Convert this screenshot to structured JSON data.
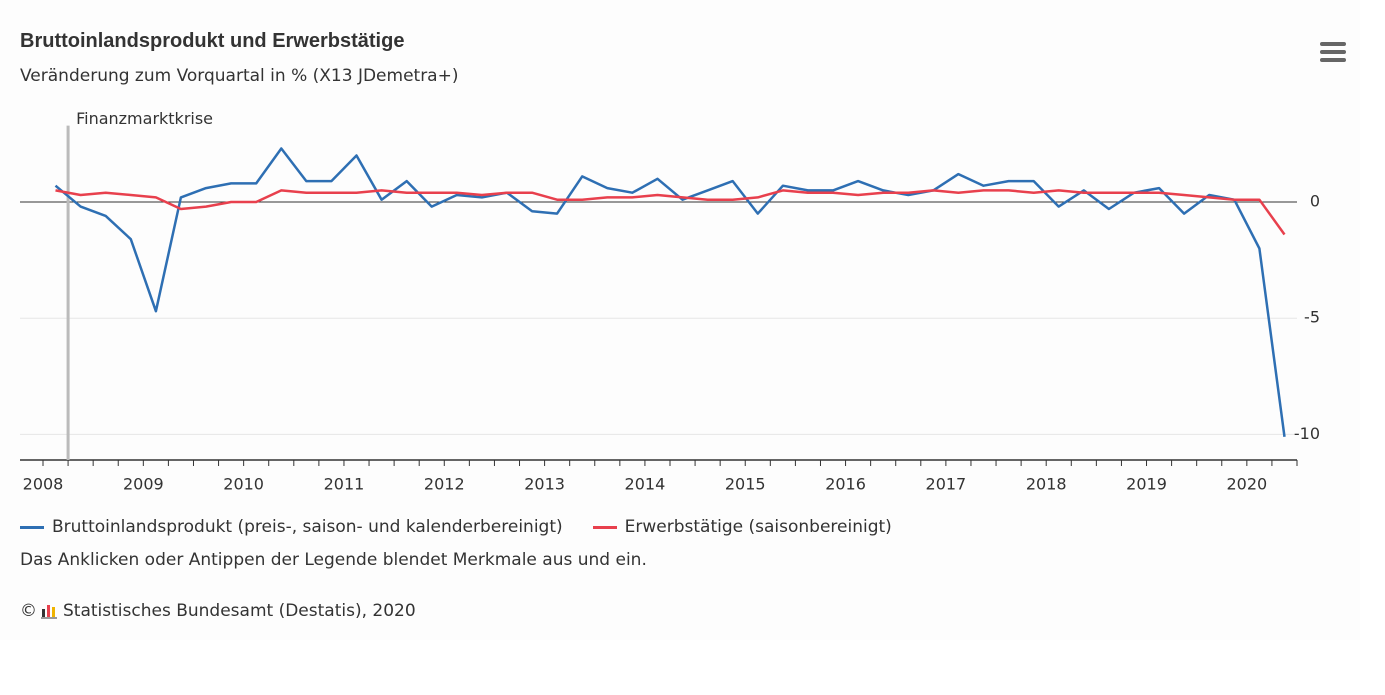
{
  "chart_data": {
    "type": "line",
    "title": "Bruttoinlandsprodukt und Erwerbstätige",
    "subtitle": "Veränderung zum Vorquartal in % (X13 JDemetra+)",
    "annotation": "Finanzmarktkrise",
    "categories": [
      "2008",
      null,
      null,
      null,
      "2009",
      null,
      null,
      null,
      "2010",
      null,
      null,
      null,
      "2011",
      null,
      null,
      null,
      "2012",
      null,
      null,
      null,
      "2013",
      null,
      null,
      null,
      "2014",
      null,
      null,
      null,
      "2015",
      null,
      null,
      null,
      "2016",
      null,
      null,
      null,
      "2017",
      null,
      null,
      null,
      "2018",
      null,
      null,
      null,
      "2019",
      null,
      null,
      null,
      "2020",
      null
    ],
    "series": [
      {
        "name": "Bruttoinlandsprodukt (preis-, saison- und kalenderbereinigt)",
        "color": "#2e6fb3",
        "values": [
          0.7,
          -0.2,
          -0.6,
          -1.6,
          -4.7,
          0.2,
          0.6,
          0.8,
          0.8,
          2.3,
          0.9,
          0.9,
          2.0,
          0.1,
          0.9,
          -0.2,
          0.3,
          0.2,
          0.4,
          -0.4,
          -0.5,
          1.1,
          0.6,
          0.4,
          1.0,
          0.1,
          0.5,
          0.9,
          -0.5,
          0.7,
          0.5,
          0.5,
          0.9,
          0.5,
          0.3,
          0.5,
          1.2,
          0.7,
          0.9,
          0.9,
          -0.2,
          0.5,
          -0.3,
          0.4,
          0.6,
          -0.5,
          0.3,
          0.1,
          -2.0,
          -10.1
        ]
      },
      {
        "name": "Erwerbstätige (saisonbereinigt)",
        "color": "#e8404d",
        "values": [
          0.5,
          0.3,
          0.4,
          0.3,
          0.2,
          -0.3,
          -0.2,
          0.0,
          0.0,
          0.5,
          0.4,
          0.4,
          0.4,
          0.5,
          0.4,
          0.4,
          0.4,
          0.3,
          0.4,
          0.4,
          0.1,
          0.1,
          0.2,
          0.2,
          0.3,
          0.2,
          0.1,
          0.1,
          0.2,
          0.5,
          0.4,
          0.4,
          0.3,
          0.4,
          0.4,
          0.5,
          0.4,
          0.5,
          0.5,
          0.4,
          0.5,
          0.4,
          0.4,
          0.4,
          0.4,
          0.3,
          0.2,
          0.1,
          0.1,
          -1.4
        ]
      }
    ],
    "ylim": [
      -11.1,
      3.2
    ],
    "yticks": [
      -10,
      -5,
      0
    ],
    "grid": true,
    "legend_note": "Das Anklicken oder Antippen der Legende blendet Merkmale aus und ein.",
    "credits": "Statistisches Bundesamt (Destatis), 2020"
  }
}
